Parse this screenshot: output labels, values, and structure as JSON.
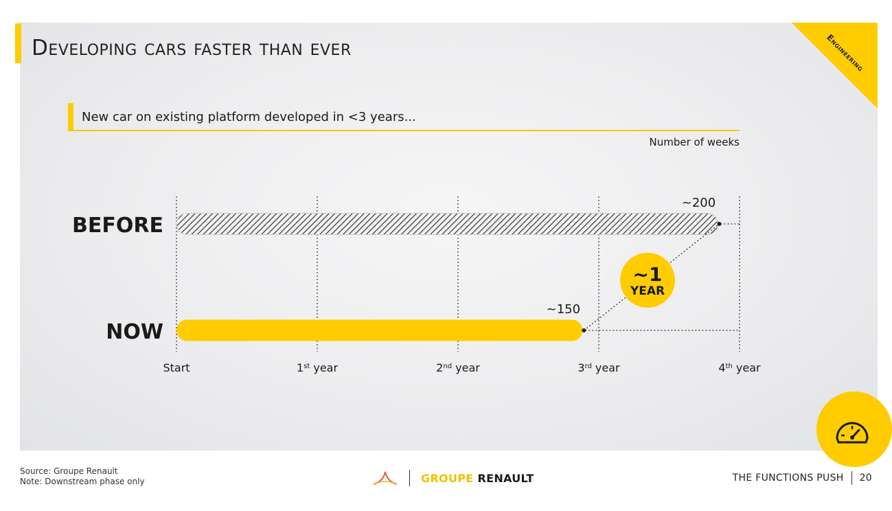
{
  "slide": {
    "title": "Developing cars faster than ever",
    "corner_tag": "Engineering",
    "subtitle": "New car on existing platform developed in <3 years...",
    "unit_label": "Number of weeks"
  },
  "chart_data": {
    "type": "bar",
    "orientation": "horizontal",
    "categories": [
      "BEFORE",
      "NOW"
    ],
    "values": [
      200,
      150
    ],
    "value_labels": [
      "~200",
      "~150"
    ],
    "unit": "Number of weeks",
    "x_ticks": [
      {
        "value": 0,
        "label": "Start",
        "sup": ""
      },
      {
        "value": 52,
        "label": "1",
        "sup": "st",
        "suffix": " year"
      },
      {
        "value": 104,
        "label": "2",
        "sup": "nd",
        "suffix": " year"
      },
      {
        "value": 156,
        "label": "3",
        "sup": "rd",
        "suffix": " year"
      },
      {
        "value": 208,
        "label": "4",
        "sup": "th",
        "suffix": " year"
      }
    ],
    "xlim": [
      0,
      208
    ],
    "grid": "vertical dotted",
    "annotation": {
      "line1": "~1",
      "line2": "YEAR"
    },
    "colors": {
      "before": "#333333",
      "now": "#ffcc00",
      "badge": "#ffcc00"
    }
  },
  "footer": {
    "source": "Source: Groupe Renault",
    "note": "Note: Downstream phase only",
    "brand_part1": "GROUPE",
    "brand_part2": "RENAULT",
    "section": "THE FUNCTIONS PUSH",
    "page_number": "20"
  },
  "icons": {
    "logo": "renault-logo-icon",
    "speedometer": "speedometer-icon"
  }
}
